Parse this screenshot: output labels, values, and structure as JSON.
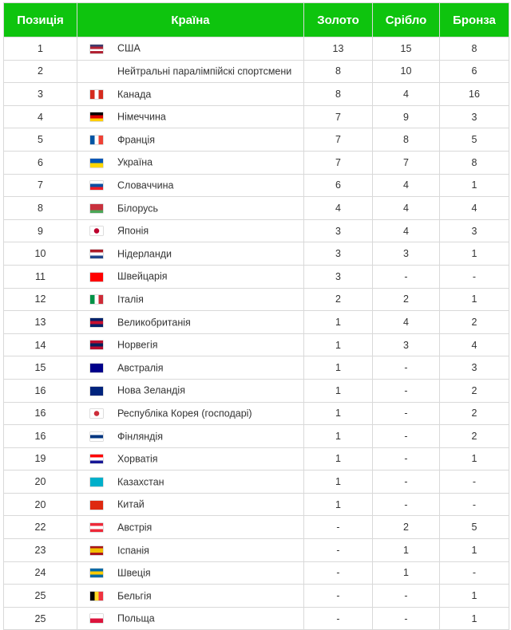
{
  "header": {
    "position": "Позиція",
    "country": "Країна",
    "gold": "Золото",
    "silver": "Срібло",
    "bronze": "Бронза"
  },
  "accent_color": "#0ec40e",
  "rows": [
    {
      "pos": "1",
      "country": "США",
      "gold": "13",
      "silver": "15",
      "bronze": "8",
      "flag": {
        "dir": "h",
        "colors": [
          "#3c3b6e",
          "#b22234",
          "#ffffff",
          "#b22234"
        ]
      }
    },
    {
      "pos": "2",
      "country": "Нейтральні паралімпійскі спортсмени",
      "gold": "8",
      "silver": "10",
      "bronze": "6",
      "flag": null
    },
    {
      "pos": "3",
      "country": "Канада",
      "gold": "8",
      "silver": "4",
      "bronze": "16",
      "flag": {
        "dir": "v",
        "colors": [
          "#d52b1e",
          "#ffffff",
          "#d52b1e"
        ]
      }
    },
    {
      "pos": "4",
      "country": "Німеччина",
      "gold": "7",
      "silver": "9",
      "bronze": "3",
      "flag": {
        "dir": "h",
        "colors": [
          "#000000",
          "#dd0000",
          "#ffce00"
        ]
      }
    },
    {
      "pos": "5",
      "country": "Франція",
      "gold": "7",
      "silver": "8",
      "bronze": "5",
      "flag": {
        "dir": "v",
        "colors": [
          "#0055a4",
          "#ffffff",
          "#ef4135"
        ]
      }
    },
    {
      "pos": "6",
      "country": "Україна",
      "gold": "7",
      "silver": "7",
      "bronze": "8",
      "flag": {
        "dir": "h",
        "colors": [
          "#0057b7",
          "#ffd700"
        ]
      }
    },
    {
      "pos": "7",
      "country": "Словаччина",
      "gold": "6",
      "silver": "4",
      "bronze": "1",
      "flag": {
        "dir": "h",
        "colors": [
          "#ffffff",
          "#0b4ea2",
          "#ee1c25"
        ]
      }
    },
    {
      "pos": "8",
      "country": "Білорусь",
      "gold": "4",
      "silver": "4",
      "bronze": "4",
      "flag": {
        "dir": "h",
        "colors": [
          "#c8313e",
          "#c8313e",
          "#4aa657"
        ]
      }
    },
    {
      "pos": "9",
      "country": "Японія",
      "gold": "3",
      "silver": "4",
      "bronze": "3",
      "flag": {
        "dir": "r",
        "colors": [
          "#ffffff",
          "#bc002d"
        ]
      }
    },
    {
      "pos": "10",
      "country": "Нідерланди",
      "gold": "3",
      "silver": "3",
      "bronze": "1",
      "flag": {
        "dir": "h",
        "colors": [
          "#ae1c28",
          "#ffffff",
          "#21468b"
        ]
      }
    },
    {
      "pos": "11",
      "country": "Швейцарія",
      "gold": "3",
      "silver": "-",
      "bronze": "-",
      "flag": {
        "dir": "h",
        "colors": [
          "#ff0000"
        ]
      }
    },
    {
      "pos": "12",
      "country": "Італія",
      "gold": "2",
      "silver": "2",
      "bronze": "1",
      "flag": {
        "dir": "v",
        "colors": [
          "#009246",
          "#ffffff",
          "#ce2b37"
        ]
      }
    },
    {
      "pos": "13",
      "country": "Великобританія",
      "gold": "1",
      "silver": "4",
      "bronze": "2",
      "flag": {
        "dir": "h",
        "colors": [
          "#012169",
          "#c8102e",
          "#012169"
        ]
      }
    },
    {
      "pos": "14",
      "country": "Норвегія",
      "gold": "1",
      "silver": "3",
      "bronze": "4",
      "flag": {
        "dir": "h",
        "colors": [
          "#ba0c2f",
          "#00205b",
          "#ba0c2f"
        ]
      }
    },
    {
      "pos": "15",
      "country": "Австралія",
      "gold": "1",
      "silver": "-",
      "bronze": "3",
      "flag": {
        "dir": "h",
        "colors": [
          "#00008b"
        ]
      }
    },
    {
      "pos": "16",
      "country": "Нова Зеландія",
      "gold": "1",
      "silver": "-",
      "bronze": "2",
      "flag": {
        "dir": "h",
        "colors": [
          "#00247d"
        ]
      }
    },
    {
      "pos": "16",
      "country": "Республіка Корея (господарі)",
      "gold": "1",
      "silver": "-",
      "bronze": "2",
      "flag": {
        "dir": "r",
        "colors": [
          "#ffffff",
          "#cd2e3a"
        ]
      }
    },
    {
      "pos": "16",
      "country": "Фінляндія",
      "gold": "1",
      "silver": "-",
      "bronze": "2",
      "flag": {
        "dir": "h",
        "colors": [
          "#ffffff",
          "#003580",
          "#ffffff"
        ]
      }
    },
    {
      "pos": "19",
      "country": "Хорватія",
      "gold": "1",
      "silver": "-",
      "bronze": "1",
      "flag": {
        "dir": "h",
        "colors": [
          "#ff0000",
          "#ffffff",
          "#171796"
        ]
      }
    },
    {
      "pos": "20",
      "country": "Казахстан",
      "gold": "1",
      "silver": "-",
      "bronze": "-",
      "flag": {
        "dir": "h",
        "colors": [
          "#00afca"
        ]
      }
    },
    {
      "pos": "20",
      "country": "Китай",
      "gold": "1",
      "silver": "-",
      "bronze": "-",
      "flag": {
        "dir": "h",
        "colors": [
          "#de2910"
        ]
      }
    },
    {
      "pos": "22",
      "country": "Австрія",
      "gold": "-",
      "silver": "2",
      "bronze": "5",
      "flag": {
        "dir": "h",
        "colors": [
          "#ed2939",
          "#ffffff",
          "#ed2939"
        ]
      }
    },
    {
      "pos": "23",
      "country": "Іспанія",
      "gold": "-",
      "silver": "1",
      "bronze": "1",
      "flag": {
        "dir": "h",
        "colors": [
          "#aa151b",
          "#f1bf00",
          "#f1bf00",
          "#aa151b"
        ]
      }
    },
    {
      "pos": "24",
      "country": "Швеція",
      "gold": "-",
      "silver": "1",
      "bronze": "-",
      "flag": {
        "dir": "h",
        "colors": [
          "#006aa7",
          "#fecc00",
          "#006aa7"
        ]
      }
    },
    {
      "pos": "25",
      "country": "Бельгія",
      "gold": "-",
      "silver": "-",
      "bronze": "1",
      "flag": {
        "dir": "v",
        "colors": [
          "#000000",
          "#fdda24",
          "#ef3340"
        ]
      }
    },
    {
      "pos": "25",
      "country": "Польща",
      "gold": "-",
      "silver": "-",
      "bronze": "1",
      "flag": {
        "dir": "h",
        "colors": [
          "#ffffff",
          "#dc143c"
        ]
      }
    }
  ]
}
